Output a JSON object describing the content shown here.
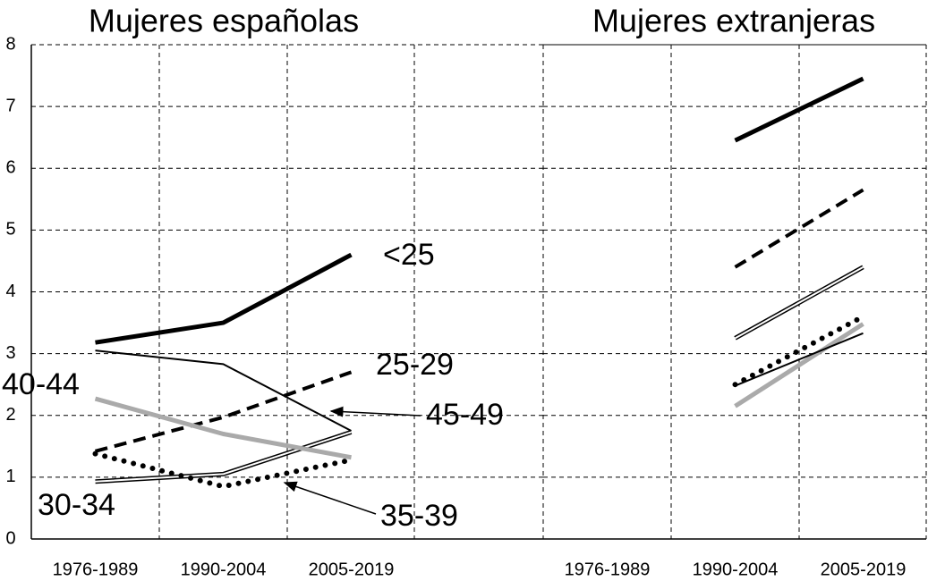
{
  "chart_data": [
    {
      "type": "line",
      "title": "Mujeres españolas",
      "categories": [
        "1976-1989",
        "1990-2004",
        "2005-2019"
      ],
      "ylim": [
        0,
        8
      ],
      "yticks": [
        0,
        1,
        2,
        3,
        4,
        5,
        6,
        7,
        8
      ],
      "grid": true,
      "series": [
        {
          "name": "<25",
          "color": "#000000",
          "style": "solid",
          "linewidth": 5,
          "values": [
            3.18,
            3.5,
            4.6
          ]
        },
        {
          "name": "25-29",
          "color": "#000000",
          "style": "dashed",
          "linewidth": 4,
          "values": [
            1.42,
            1.97,
            2.7
          ]
        },
        {
          "name": "30-34",
          "color": "#000000",
          "style": "double",
          "linewidth": 5,
          "values": [
            0.93,
            1.05,
            1.73
          ]
        },
        {
          "name": "35-39",
          "color": "#000000",
          "style": "dotted",
          "linewidth": 5,
          "values": [
            1.38,
            0.85,
            1.28
          ]
        },
        {
          "name": "40-44",
          "color": "#aaaaaa",
          "style": "solid",
          "linewidth": 5,
          "values": [
            2.27,
            1.7,
            1.32
          ]
        },
        {
          "name": "45-49",
          "color": "#000000",
          "style": "solid",
          "linewidth": 2,
          "values": [
            3.05,
            2.83,
            1.75
          ]
        }
      ]
    },
    {
      "type": "line",
      "title": "Mujeres extranjeras",
      "categories": [
        "1976-1989",
        "1990-2004",
        "2005-2019"
      ],
      "ylim": [
        0,
        8
      ],
      "yticks": [
        0,
        1,
        2,
        3,
        4,
        5,
        6,
        7,
        8
      ],
      "grid": true,
      "series": [
        {
          "color": "#000000",
          "style": "solid",
          "linewidth": 5,
          "values": [
            null,
            6.45,
            7.45
          ]
        },
        {
          "color": "#000000",
          "style": "dashed",
          "linewidth": 4,
          "values": [
            null,
            4.4,
            5.65
          ]
        },
        {
          "color": "#000000",
          "style": "double",
          "linewidth": 5,
          "values": [
            null,
            3.25,
            4.4
          ]
        },
        {
          "color": "#000000",
          "style": "dotted",
          "linewidth": 5,
          "values": [
            null,
            2.5,
            3.6
          ]
        },
        {
          "color": "#aaaaaa",
          "style": "solid",
          "linewidth": 5,
          "values": [
            null,
            2.15,
            3.48
          ]
        },
        {
          "color": "#000000",
          "style": "solid",
          "linewidth": 2,
          "values": [
            null,
            2.48,
            3.33
          ]
        }
      ]
    }
  ]
}
